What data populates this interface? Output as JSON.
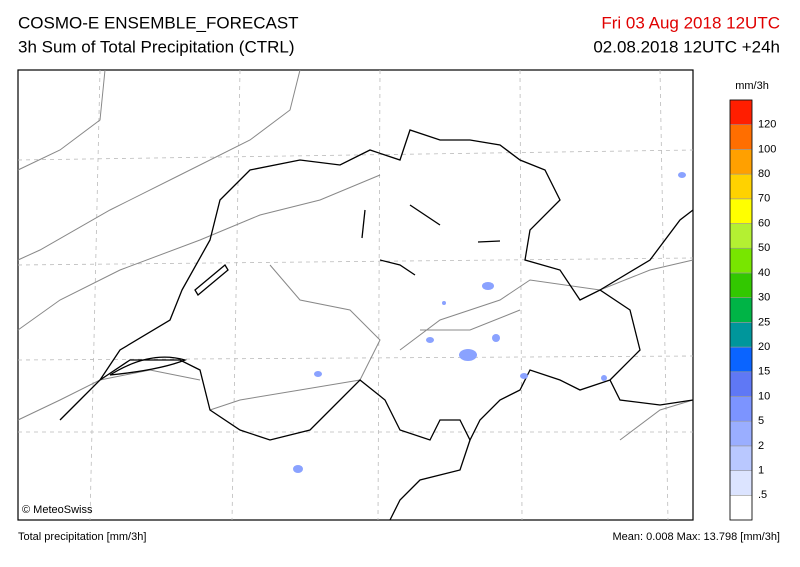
{
  "header": {
    "title": "COSMO-E ENSEMBLE_FORECAST",
    "subtitle": "3h Sum of Total Precipitation (CTRL)",
    "valid_time": "Fri 03 Aug 2018 12UTC",
    "run": "02.08.2018 12UTC +24h"
  },
  "map": {
    "credit": "© MeteoSwiss"
  },
  "legend": {
    "unit": "mm/3h",
    "labels": [
      ".5",
      "1",
      "2",
      "5",
      "10",
      "15",
      "20",
      "25",
      "30",
      "40",
      "50",
      "60",
      "70",
      "80",
      "100",
      "120"
    ],
    "colors": [
      "#ffffff",
      "#dce4ff",
      "#b9c8ff",
      "#9aaeff",
      "#7c94ff",
      "#5f78f5",
      "#0a64ff",
      "#00969b",
      "#00b446",
      "#32c800",
      "#78e600",
      "#b4f032",
      "#ffff00",
      "#ffd200",
      "#ffa000",
      "#ff6e00",
      "#ff1e00"
    ]
  },
  "footer": {
    "left": "Total precipitation [mm/3h]",
    "stats": "Mean:  0.008 Max:  13.798 [mm/3h]"
  }
}
